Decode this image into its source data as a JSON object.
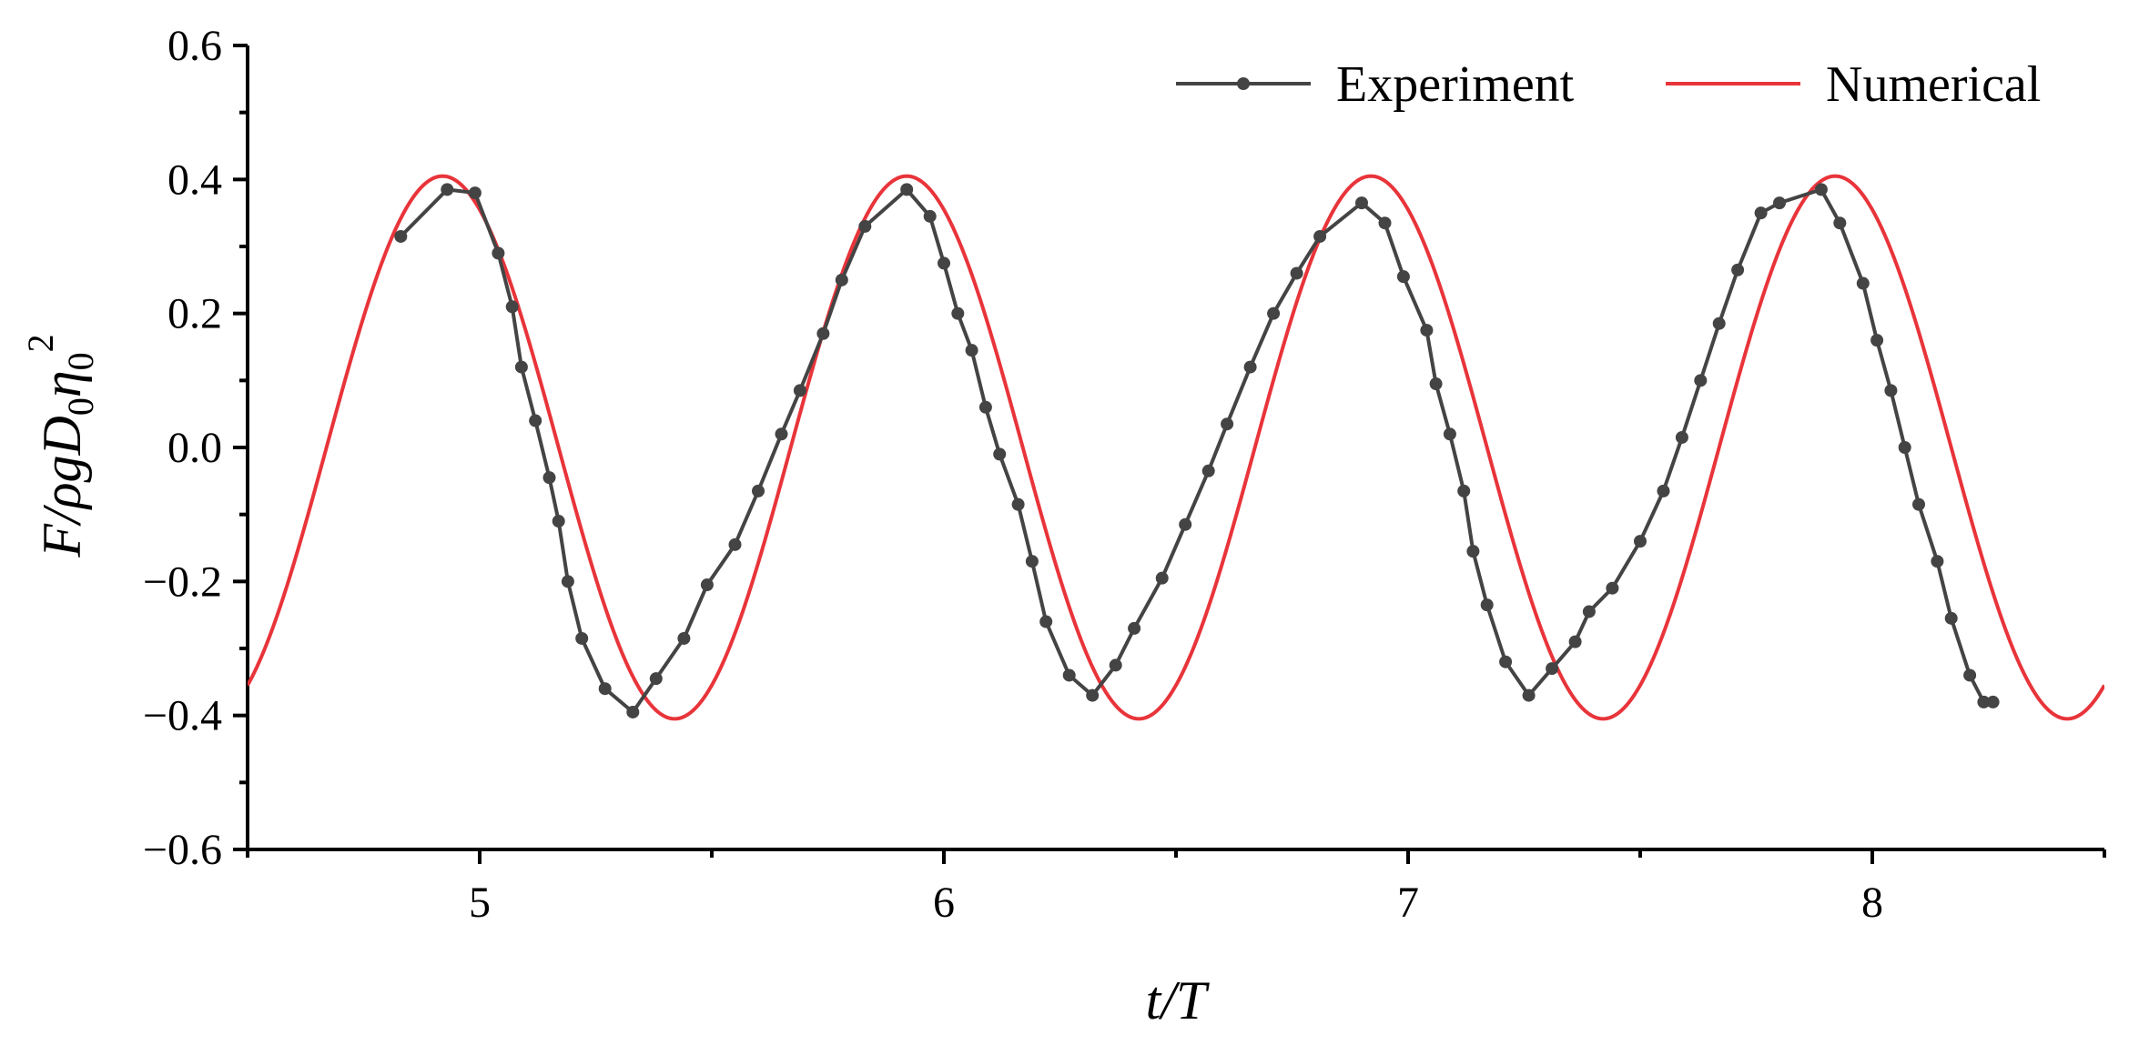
{
  "chart_data": {
    "type": "line",
    "xlabel": {
      "pre": "t",
      "post": "/T"
    },
    "ylabel": {
      "F": "F",
      "rho": "/ρgD",
      "sub0": "0",
      "eta": "η",
      "sub1": "0",
      "sup": "2"
    },
    "xlim": [
      4.5,
      8.5
    ],
    "ylim": [
      -0.6,
      0.6
    ],
    "x_ticks": [
      5,
      6,
      7,
      8
    ],
    "x_minor_ticks": [
      4.5,
      5.5,
      6.5,
      7.5,
      8.5
    ],
    "y_ticks": [
      -0.6,
      -0.4,
      -0.2,
      0.0,
      0.2,
      0.4,
      0.6
    ],
    "y_tick_labels": [
      "−0.6",
      "−0.4",
      "−0.2",
      "0.0",
      "0.2",
      "0.4",
      "0.6"
    ],
    "grid": false,
    "legend_position": "top-right",
    "series": [
      {
        "name": "Experiment",
        "color": "#444444",
        "marker": "circle",
        "x": [
          4.83,
          4.93,
          4.99,
          5.04,
          5.07,
          5.09,
          5.12,
          5.15,
          5.17,
          5.19,
          5.22,
          5.27,
          5.33,
          5.38,
          5.44,
          5.49,
          5.55,
          5.6,
          5.65,
          5.69,
          5.74,
          5.78,
          5.83,
          5.92,
          5.97,
          6.0,
          6.03,
          6.06,
          6.09,
          6.12,
          6.16,
          6.19,
          6.22,
          6.27,
          6.32,
          6.37,
          6.41,
          6.47,
          6.52,
          6.57,
          6.61,
          6.66,
          6.71,
          6.76,
          6.81,
          6.9,
          6.95,
          6.99,
          7.04,
          7.06,
          7.09,
          7.12,
          7.14,
          7.17,
          7.21,
          7.26,
          7.31,
          7.36,
          7.39,
          7.44,
          7.5,
          7.55,
          7.59,
          7.63,
          7.67,
          7.71,
          7.76,
          7.8,
          7.89,
          7.93,
          7.98,
          8.01,
          8.04,
          8.07,
          8.1,
          8.14,
          8.17,
          8.21,
          8.24,
          8.26
        ],
        "y": [
          0.315,
          0.385,
          0.38,
          0.29,
          0.21,
          0.12,
          0.04,
          -0.045,
          -0.11,
          -0.2,
          -0.285,
          -0.36,
          -0.395,
          -0.345,
          -0.285,
          -0.205,
          -0.145,
          -0.065,
          0.02,
          0.085,
          0.17,
          0.25,
          0.33,
          0.385,
          0.345,
          0.275,
          0.2,
          0.145,
          0.06,
          -0.01,
          -0.085,
          -0.17,
          -0.26,
          -0.34,
          -0.37,
          -0.325,
          -0.27,
          -0.195,
          -0.115,
          -0.035,
          0.035,
          0.12,
          0.2,
          0.26,
          0.315,
          0.365,
          0.335,
          0.255,
          0.175,
          0.095,
          0.02,
          -0.065,
          -0.155,
          -0.235,
          -0.32,
          -0.37,
          -0.33,
          -0.29,
          -0.245,
          -0.21,
          -0.14,
          -0.065,
          0.015,
          0.1,
          0.185,
          0.265,
          0.35,
          0.365,
          0.385,
          0.335,
          0.245,
          0.16,
          0.085,
          0.0,
          -0.085,
          -0.17,
          -0.255,
          -0.34,
          -0.38,
          -0.38
        ]
      },
      {
        "name": "Numerical",
        "color": "#e8343a",
        "marker": "none",
        "amplitude": 0.405,
        "phase_peak": 4.92,
        "period": 1.0
      }
    ]
  }
}
